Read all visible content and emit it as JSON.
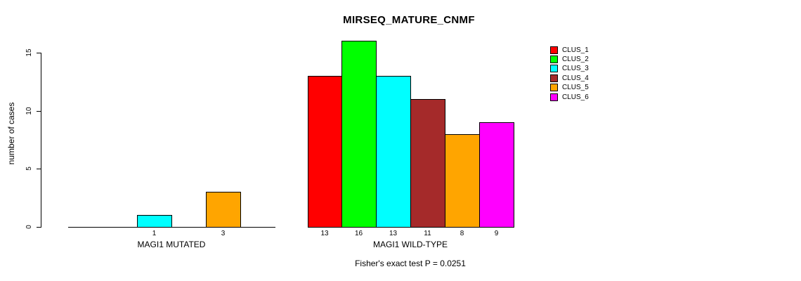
{
  "title": "MIRSEQ_MATURE_CNMF",
  "footer": "Fisher's exact test P = 0.0251",
  "chart_data": {
    "type": "bar",
    "title": "MIRSEQ_MATURE_CNMF",
    "ylabel": "number of cases",
    "ylim": [
      0,
      16
    ],
    "yticks": [
      0,
      5,
      10,
      15
    ],
    "grid": false,
    "legend_position": "top-right",
    "series": [
      {
        "name": "CLUS_1",
        "color": "#FF0000",
        "values": [
          0,
          13
        ]
      },
      {
        "name": "CLUS_2",
        "color": "#00FF00",
        "values": [
          0,
          16
        ]
      },
      {
        "name": "CLUS_3",
        "color": "#00FFFF",
        "values": [
          1,
          13
        ]
      },
      {
        "name": "CLUS_4",
        "color": "#A52A2A",
        "values": [
          0,
          11
        ]
      },
      {
        "name": "CLUS_5",
        "color": "#FFA500",
        "values": [
          3,
          8
        ]
      },
      {
        "name": "CLUS_6",
        "color": "#FF00FF",
        "values": [
          0,
          9
        ]
      }
    ],
    "groups": [
      {
        "label": "MAGI1 MUTATED",
        "values": [
          0,
          0,
          1,
          0,
          3,
          0
        ]
      },
      {
        "label": "MAGI1 WILD-TYPE",
        "values": [
          13,
          16,
          13,
          11,
          8,
          9
        ]
      }
    ],
    "bar_value_labels_shown": [
      "1",
      "3",
      "13",
      "16",
      "13",
      "11",
      "8",
      "9"
    ],
    "annotation": "Fisher's exact test P = 0.0251"
  }
}
